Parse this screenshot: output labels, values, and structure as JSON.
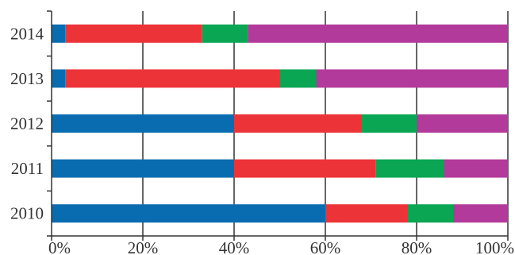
{
  "chart_data": {
    "type": "bar",
    "orientation": "horizontal",
    "stacked": true,
    "percent_stacked": true,
    "title": "",
    "xlabel": "",
    "ylabel": "",
    "categories": [
      "2010",
      "2011",
      "2012",
      "2013",
      "2014"
    ],
    "series": [
      {
        "color": "#0a6cb0",
        "values": [
          60,
          40,
          40,
          3,
          3
        ]
      },
      {
        "color": "#ec3338",
        "values": [
          18,
          31,
          28,
          47,
          30
        ]
      },
      {
        "color": "#0aa653",
        "values": [
          10,
          15,
          12,
          8,
          10
        ]
      },
      {
        "color": "#b23a9a",
        "values": [
          12,
          14,
          20,
          42,
          57
        ]
      }
    ],
    "xlim": [
      0,
      100
    ],
    "x_ticks": [
      0,
      20,
      40,
      60,
      80,
      100
    ],
    "x_tick_labels": [
      "0%",
      "20%",
      "40%",
      "60%",
      "80%",
      "100%"
    ],
    "grid": {
      "vertical": true,
      "horizontal": false
    },
    "legend": "none"
  }
}
